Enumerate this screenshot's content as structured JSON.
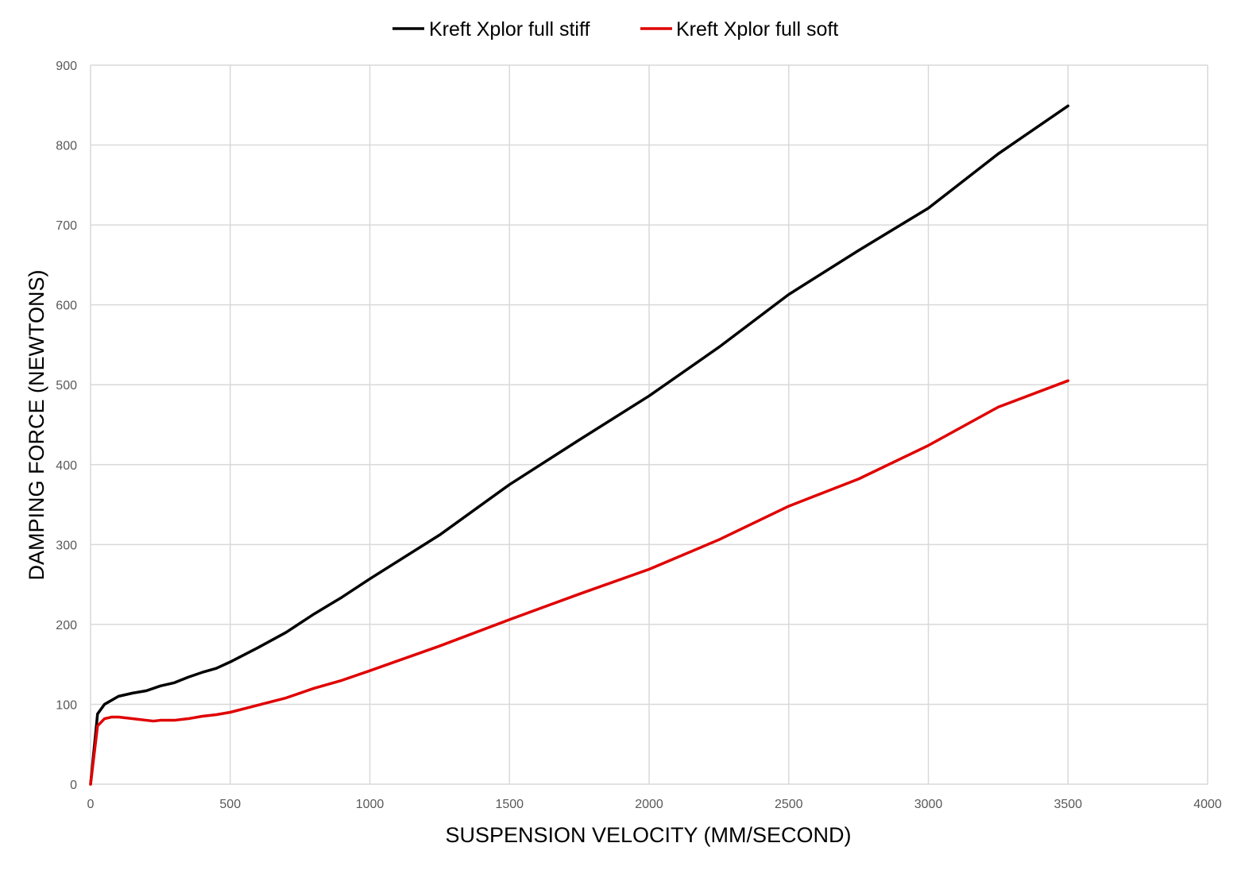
{
  "chart_data": {
    "type": "line",
    "xlabel": "SUSPENSION VELOCITY (MM/SECOND)",
    "ylabel": "DAMPING FORCE (NEWTONS)",
    "xlim": [
      0,
      4000
    ],
    "ylim": [
      0,
      900
    ],
    "xticks": [
      0,
      500,
      1000,
      1500,
      2000,
      2500,
      3000,
      3500,
      4000
    ],
    "yticks": [
      0,
      100,
      200,
      300,
      400,
      500,
      600,
      700,
      800,
      900
    ],
    "grid": true,
    "legend_position": "top",
    "series": [
      {
        "name": "Kreft Xplor full stiff",
        "color": "#000000",
        "points": [
          [
            0,
            0
          ],
          [
            25,
            88
          ],
          [
            50,
            100
          ],
          [
            100,
            110
          ],
          [
            150,
            114
          ],
          [
            200,
            117
          ],
          [
            250,
            123
          ],
          [
            300,
            127
          ],
          [
            350,
            134
          ],
          [
            400,
            140
          ],
          [
            450,
            145
          ],
          [
            500,
            153
          ],
          [
            600,
            171
          ],
          [
            700,
            190
          ],
          [
            800,
            213
          ],
          [
            900,
            234
          ],
          [
            1000,
            257
          ],
          [
            1250,
            312
          ],
          [
            1500,
            375
          ],
          [
            1750,
            431
          ],
          [
            2000,
            486
          ],
          [
            2250,
            547
          ],
          [
            2500,
            613
          ],
          [
            2750,
            668
          ],
          [
            3000,
            721
          ],
          [
            3250,
            789
          ],
          [
            3500,
            849
          ]
        ]
      },
      {
        "name": "Kreft Xplor full soft",
        "color": "#e00000",
        "points": [
          [
            0,
            0
          ],
          [
            25,
            73
          ],
          [
            50,
            82
          ],
          [
            75,
            84
          ],
          [
            100,
            84
          ],
          [
            150,
            82
          ],
          [
            200,
            80
          ],
          [
            225,
            79
          ],
          [
            250,
            80
          ],
          [
            300,
            80
          ],
          [
            350,
            82
          ],
          [
            400,
            85
          ],
          [
            450,
            87
          ],
          [
            500,
            90
          ],
          [
            600,
            99
          ],
          [
            700,
            108
          ],
          [
            800,
            120
          ],
          [
            900,
            130
          ],
          [
            1000,
            142
          ],
          [
            1250,
            173
          ],
          [
            1500,
            206
          ],
          [
            1750,
            238
          ],
          [
            2000,
            269
          ],
          [
            2250,
            306
          ],
          [
            2500,
            348
          ],
          [
            2750,
            382
          ],
          [
            3000,
            424
          ],
          [
            3250,
            472
          ],
          [
            3500,
            505
          ]
        ]
      }
    ]
  }
}
